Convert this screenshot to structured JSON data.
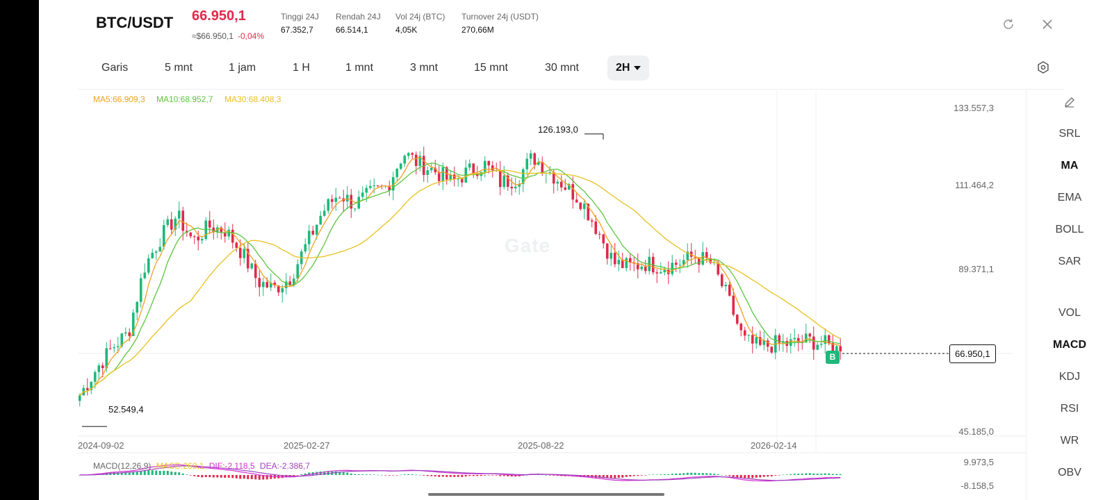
{
  "header": {
    "pair": "BTC/USDT",
    "price": "66.950,1",
    "price_color": "#e0294a",
    "usd_price": "≈$66.950,1",
    "change": "-0,04%",
    "stats": [
      {
        "label": "Tinggi 24J",
        "value": "67.352,7"
      },
      {
        "label": "Rendah 24J",
        "value": "66.514,1"
      },
      {
        "label": "Vol 24j (BTC)",
        "value": "4,05K"
      },
      {
        "label": "Turnover 24j (USDT)",
        "value": "270,66M"
      }
    ],
    "icons": [
      "refresh-icon",
      "close-icon"
    ]
  },
  "tabs": [
    {
      "label": "Garis"
    },
    {
      "label": "5 mnt"
    },
    {
      "label": "1 jam"
    },
    {
      "label": "1 H"
    },
    {
      "label": "1 mnt"
    },
    {
      "label": "3 mnt"
    },
    {
      "label": "15 mnt"
    },
    {
      "label": "30 mnt"
    },
    {
      "label": "2H",
      "active": true
    }
  ],
  "ma_legend": [
    {
      "label": "MA5:66.909,3",
      "color": "#f0a020"
    },
    {
      "label": "MA10:68.952,7",
      "color": "#5cc540"
    },
    {
      "label": "MA30:68.408,3",
      "color": "#e8c020"
    }
  ],
  "y_axis_labels": [
    "133.557,3",
    "111.464,2",
    "89.371,1",
    "45.185,0"
  ],
  "x_axis_labels": [
    "2024-09-02",
    "2025-02-27",
    "2025-08-22",
    "2026-02-14"
  ],
  "high_label": "126.193,0",
  "low_label": "52.549,4",
  "current_price_label": "66.950,1",
  "buy_marker": "B",
  "watermark": "Gate",
  "indicators": [
    "SRL",
    "MA",
    "EMA",
    "BOLL",
    "SAR",
    "VOL",
    "MACD",
    "KDJ",
    "RSI",
    "WR",
    "OBV"
  ],
  "indicators_active": [
    "MA",
    "MACD"
  ],
  "macd": {
    "title": "MACD(12,26,9)",
    "macd_label": "MACD:268,1",
    "dif_label": "DIF:-2.118,5",
    "dea_label": "DEA:-2.386,7",
    "y_max": "9.973,5",
    "y_min": "-8.158,5"
  },
  "colors": {
    "up": "#1fb87a",
    "down": "#e0294a",
    "ma5": "#f0a020",
    "ma10": "#5cc540",
    "ma30": "#e8c020",
    "dif": "#d030d0",
    "dea": "#a040c0"
  },
  "chart_data": {
    "type": "candlestick",
    "x_labels": [
      "2024-09-02",
      "2025-02-27",
      "2025-08-22",
      "2026-02-14"
    ],
    "ylim": [
      45185.0,
      133557.3
    ],
    "trend_close": [
      55000,
      62000,
      68000,
      72000,
      90000,
      98000,
      104000,
      97000,
      101000,
      100000,
      94000,
      86000,
      84000,
      87000,
      96000,
      105000,
      110000,
      107000,
      110000,
      112000,
      121000,
      118000,
      116000,
      113000,
      116000,
      118000,
      113000,
      114000,
      120000,
      116000,
      112000,
      108000,
      100000,
      91000,
      90000,
      91000,
      90000,
      91000,
      93000,
      91000,
      82000,
      70000,
      68000,
      69000,
      69000,
      70000,
      69000,
      67000
    ],
    "high": 126193.0,
    "low": 52549.4,
    "last": 66950.1
  }
}
